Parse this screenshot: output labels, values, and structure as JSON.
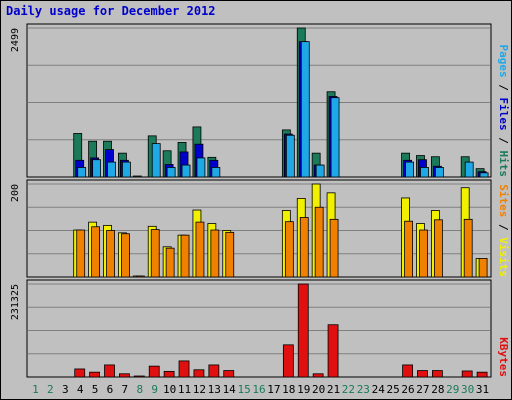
{
  "title": "Daily usage for December 2012",
  "colors": {
    "hits": "#1a7a5a",
    "files": "#0000cc",
    "pages": "#1ea8e6",
    "visits": "#f0f000",
    "sites": "#f08000",
    "kbytes": "#e01010",
    "background": "#c0c0c0",
    "weekend_label": "#1a7a5a",
    "weekday_label": "#000000"
  },
  "panel_max_labels": {
    "top": "2499",
    "middle": "200",
    "bottom": "231325"
  },
  "legend": {
    "top": [
      {
        "text": "Pages",
        "color": "#1ea8e6"
      },
      {
        "text": " / ",
        "color": "#000000"
      },
      {
        "text": "Files",
        "color": "#0000cc"
      },
      {
        "text": " / ",
        "color": "#000000"
      },
      {
        "text": "Hits",
        "color": "#1a7a5a"
      }
    ],
    "middle": [
      {
        "text": "Sites",
        "color": "#f08000"
      },
      {
        "text": " / ",
        "color": "#000000"
      },
      {
        "text": "Visits",
        "color": "#f0f000"
      }
    ],
    "bottom": [
      {
        "text": "KBytes",
        "color": "#e01010"
      }
    ]
  },
  "chart_data": {
    "type": "bar",
    "title": "Daily usage for December 2012",
    "categories": [
      "1",
      "2",
      "3",
      "4",
      "5",
      "6",
      "7",
      "8",
      "9",
      "10",
      "11",
      "12",
      "13",
      "14",
      "15",
      "16",
      "17",
      "18",
      "19",
      "20",
      "21",
      "22",
      "23",
      "24",
      "25",
      "26",
      "27",
      "28",
      "29",
      "30",
      "31"
    ],
    "weekend_days": [
      "1",
      "2",
      "8",
      "9",
      "15",
      "16",
      "22",
      "23",
      "29",
      "30"
    ],
    "panels": [
      {
        "name": "top",
        "ymax": 2499,
        "series": [
          {
            "name": "Hits",
            "values": [
              0,
              0,
              0,
              730,
              600,
              600,
              400,
              10,
              690,
              440,
              580,
              840,
              330,
              0,
              0,
              0,
              0,
              790,
              2499,
              400,
              1430,
              0,
              0,
              0,
              0,
              400,
              360,
              340,
              0,
              340,
              140
            ]
          },
          {
            "name": "Files",
            "values": [
              0,
              0,
              0,
              280,
              320,
              460,
              280,
              0,
              0,
              210,
              420,
              550,
              280,
              0,
              0,
              0,
              0,
              720,
              2270,
              200,
              1350,
              0,
              0,
              0,
              0,
              280,
              290,
              180,
              0,
              0,
              90
            ]
          },
          {
            "name": "Pages",
            "values": [
              0,
              0,
              0,
              160,
              290,
              250,
              250,
              0,
              560,
              160,
              200,
              320,
              160,
              0,
              0,
              0,
              0,
              700,
              2270,
              200,
              1330,
              0,
              0,
              0,
              0,
              250,
              160,
              160,
              0,
              250,
              70
            ]
          }
        ]
      },
      {
        "name": "middle",
        "ymax": 200,
        "series": [
          {
            "name": "Visits",
            "values": [
              0,
              0,
              0,
              101,
              118,
              111,
              95,
              2,
              109,
              65,
              90,
              144,
              115,
              100,
              0,
              0,
              0,
              143,
              169,
              200,
              181,
              0,
              0,
              0,
              0,
              170,
              115,
              143,
              0,
              192,
              40
            ]
          },
          {
            "name": "Sites",
            "values": [
              0,
              0,
              0,
              101,
              108,
              100,
              93,
              2,
              102,
              62,
              90,
              118,
              101,
              96,
              0,
              0,
              0,
              119,
              128,
              150,
              124,
              0,
              0,
              0,
              0,
              120,
              101,
              123,
              0,
              124,
              40
            ]
          }
        ]
      },
      {
        "name": "bottom",
        "ymax": 231325,
        "series": [
          {
            "name": "KBytes",
            "values": [
              0,
              0,
              0,
              20000,
              12000,
              30000,
              8000,
              2000,
              27000,
              14000,
              40000,
              18000,
              30000,
              16000,
              0,
              0,
              0,
              80000,
              231325,
              8000,
              130000,
              0,
              0,
              0,
              0,
              30000,
              16000,
              16000,
              0,
              15000,
              12000
            ]
          }
        ]
      }
    ]
  }
}
